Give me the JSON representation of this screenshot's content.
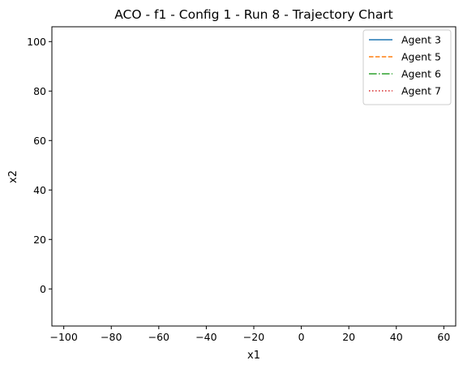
{
  "chart_data": {
    "type": "line",
    "title": "ACO - f1 - Config 1 - Run 8 - Trajectory Chart",
    "xlabel": "x1",
    "ylabel": "x2",
    "xlim": [
      -105,
      65
    ],
    "ylim": [
      -15,
      106
    ],
    "xticks": [
      -100,
      -80,
      -60,
      -40,
      -20,
      0,
      20,
      40,
      60
    ],
    "xtick_labels": [
      "−100",
      "−80",
      "−60",
      "−40",
      "−20",
      "0",
      "20",
      "40",
      "60"
    ],
    "yticks": [
      0,
      20,
      40,
      60,
      80,
      100
    ],
    "ytick_labels": [
      "0",
      "20",
      "40",
      "60",
      "80",
      "100"
    ],
    "grid": false,
    "legend_position": "top-right",
    "series": [
      {
        "name": "Agent 3",
        "color": "#1f77b4",
        "linestyle": "solid",
        "x": [],
        "y": []
      },
      {
        "name": "Agent 5",
        "color": "#ff7f0e",
        "linestyle": "dashed",
        "x": [],
        "y": []
      },
      {
        "name": "Agent 6",
        "color": "#2ca02c",
        "linestyle": "dashdot",
        "x": [],
        "y": []
      },
      {
        "name": "Agent 7",
        "color": "#d62728",
        "linestyle": "dotted",
        "x": [],
        "y": []
      }
    ]
  }
}
